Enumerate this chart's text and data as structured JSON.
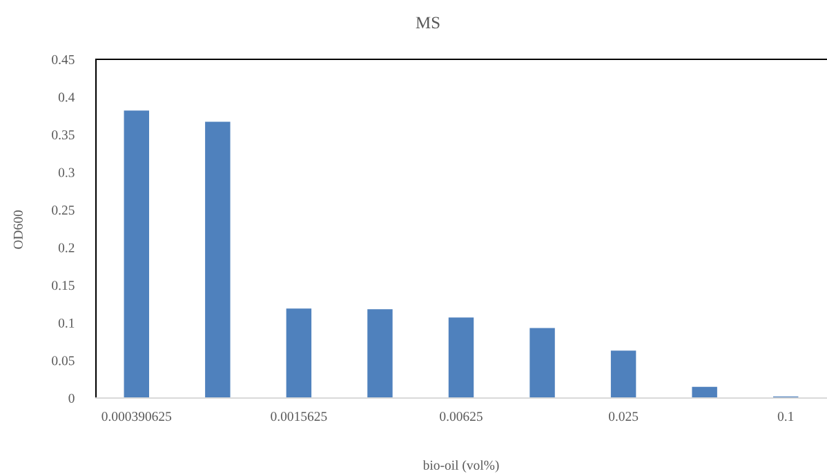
{
  "chart_data": {
    "type": "bar",
    "title": "MS",
    "xlabel": "bio-oil (vol%)",
    "ylabel": "OD600",
    "categories": [
      "0.000390625",
      null,
      "0.0015625",
      null,
      "0.00625",
      null,
      "0.025",
      null,
      "0.1"
    ],
    "values": [
      0.382,
      0.367,
      0.119,
      0.118,
      0.107,
      0.093,
      0.063,
      0.015,
      0.002
    ],
    "color": "#4f81bd",
    "ylim": [
      0,
      0.45
    ],
    "yticks": [
      0,
      0.05,
      0.1,
      0.15,
      0.2,
      0.25,
      0.3,
      0.35,
      0.4,
      0.45
    ],
    "grid": false,
    "legend": false
  }
}
